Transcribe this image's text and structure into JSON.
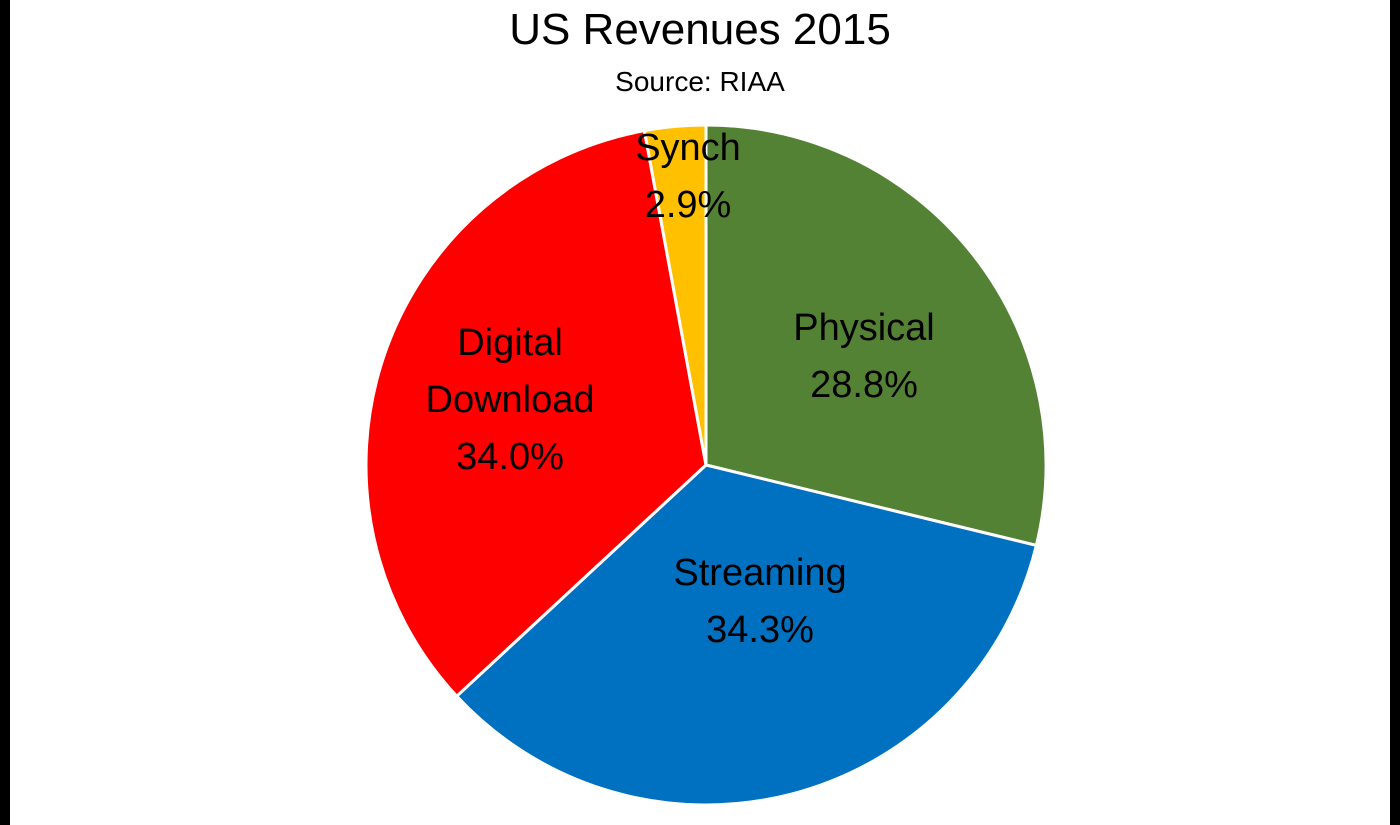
{
  "chart_data": {
    "type": "pie",
    "title": "US Revenues 2015",
    "subtitle": "Source: RIAA",
    "slices": [
      {
        "label_lines": [
          "Physical"
        ],
        "value": 28.8,
        "value_label": "28.8%",
        "color": "#548235"
      },
      {
        "label_lines": [
          "Streaming"
        ],
        "value": 34.3,
        "value_label": "34.3%",
        "color": "#0070C0"
      },
      {
        "label_lines": [
          "Digital",
          "Download"
        ],
        "value": 34.0,
        "value_label": "34.0%",
        "color": "#FF0000"
      },
      {
        "label_lines": [
          "Synch"
        ],
        "value": 2.9,
        "value_label": "2.9%",
        "color": "#FFC000"
      }
    ],
    "start_angle": "12 o'clock",
    "direction": "clockwise",
    "legend": "none"
  }
}
